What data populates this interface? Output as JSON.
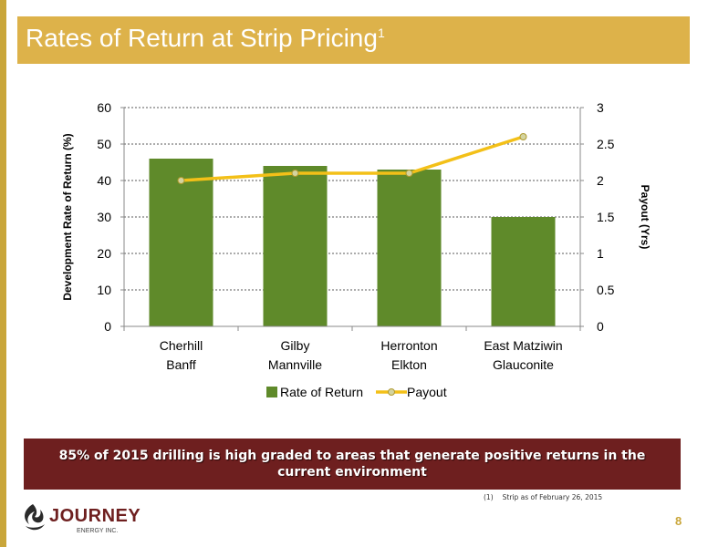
{
  "header": {
    "title": "Rates of Return at Strip Pricing",
    "title_sup": "1"
  },
  "chart_data": {
    "type": "bar",
    "categories": [
      [
        "Cherhill",
        "Banff"
      ],
      [
        "Gilby",
        "Mannville"
      ],
      [
        "Herronton",
        "Elkton"
      ],
      [
        "East Matziwin",
        "Glauconite"
      ]
    ],
    "series": [
      {
        "name": "Rate of Return",
        "type": "bar",
        "axis": "left",
        "values": [
          46,
          44,
          43,
          30
        ],
        "color": "#5f8a2a"
      },
      {
        "name": "Payout",
        "type": "line",
        "axis": "right",
        "values": [
          2.0,
          2.1,
          2.1,
          2.6
        ],
        "color": "#f3c018"
      }
    ],
    "ylabel_left": "Development Rate of Return (%)",
    "ylabel_right": "Payout (Yrs)",
    "ylim_left": [
      0,
      60
    ],
    "ylim_right": [
      0,
      3
    ],
    "yticks_left": [
      "0",
      "10",
      "20",
      "30",
      "40",
      "50",
      "60"
    ],
    "yticks_right": [
      "0",
      "0.5",
      "1",
      "1.5",
      "2",
      "2.5",
      "3"
    ],
    "grid": true,
    "legend_position": "bottom"
  },
  "callout": {
    "text": "85% of 2015 drilling is high graded to areas that generate positive returns in the current environment"
  },
  "footnote": {
    "number": "(1)",
    "text": "Strip as of February 26, 2015"
  },
  "logo": {
    "name": "JOURNEY",
    "sub": "ENERGY INC."
  },
  "page": {
    "number": "8"
  },
  "colors": {
    "accent": "#ddb24a",
    "brand": "#6e1f1f"
  }
}
